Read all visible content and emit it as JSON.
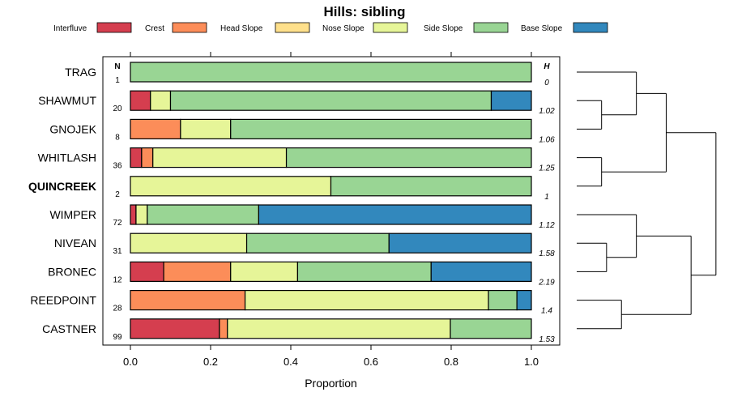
{
  "chart_data": {
    "type": "bar",
    "subtype": "stacked-horizontal-proportion",
    "title": "Hills: sibling",
    "xlabel": "Proportion",
    "xlim": [
      0,
      1
    ],
    "xticks": [
      "0.0",
      "0.2",
      "0.4",
      "0.6",
      "0.8",
      "1.0"
    ],
    "xtick_values": [
      0,
      0.2,
      0.4,
      0.6,
      0.8,
      1.0
    ],
    "n_header": "N",
    "h_header": "H",
    "series": [
      {
        "name": "Interfluve",
        "color": "#D53E4F"
      },
      {
        "name": "Crest",
        "color": "#FC8D59"
      },
      {
        "name": "Head Slope",
        "color": "#FEE08B"
      },
      {
        "name": "Nose Slope",
        "color": "#E6F598"
      },
      {
        "name": "Side Slope",
        "color": "#99D594"
      },
      {
        "name": "Base Slope",
        "color": "#3288BD"
      }
    ],
    "categories": [
      {
        "name": "TRAG",
        "n": "1",
        "h": "0",
        "bold": false,
        "values": [
          0,
          0,
          0,
          0,
          1.0,
          0
        ]
      },
      {
        "name": "SHAWMUT",
        "n": "20",
        "h": "1.02",
        "bold": false,
        "values": [
          0.05,
          0,
          0,
          0.05,
          0.8,
          0.1
        ]
      },
      {
        "name": "GNOJEK",
        "n": "8",
        "h": "1.06",
        "bold": false,
        "values": [
          0,
          0.125,
          0,
          0.125,
          0.75,
          0
        ]
      },
      {
        "name": "WHITLASH",
        "n": "36",
        "h": "1.25",
        "bold": false,
        "values": [
          0.028,
          0.028,
          0,
          0.333,
          0.611,
          0
        ]
      },
      {
        "name": "QUINCREEK",
        "n": "2",
        "h": "1",
        "bold": true,
        "values": [
          0,
          0,
          0,
          0.5,
          0.5,
          0
        ]
      },
      {
        "name": "WIMPER",
        "n": "72",
        "h": "1.12",
        "bold": false,
        "values": [
          0.014,
          0,
          0,
          0.028,
          0.278,
          0.68
        ]
      },
      {
        "name": "NIVEAN",
        "n": "31",
        "h": "1.58",
        "bold": false,
        "values": [
          0,
          0,
          0,
          0.29,
          0.355,
          0.355
        ]
      },
      {
        "name": "BRONEC",
        "n": "12",
        "h": "2.19",
        "bold": false,
        "values": [
          0.083,
          0.167,
          0,
          0.167,
          0.333,
          0.25
        ]
      },
      {
        "name": "REEDPOINT",
        "n": "28",
        "h": "1.4",
        "bold": false,
        "values": [
          0,
          0.286,
          0,
          0.607,
          0.071,
          0.036
        ]
      },
      {
        "name": "CASTNER",
        "n": "99",
        "h": "1.53",
        "bold": false,
        "values": [
          0.222,
          0.02,
          0,
          0.556,
          0.202,
          0
        ]
      }
    ],
    "dendrogram": [
      {
        "id": "m1",
        "left": "SHAWMUT",
        "right": "GNOJEK",
        "height": 0.25
      },
      {
        "id": "m2",
        "left": "TRAG",
        "right": "m1",
        "height": 0.6
      },
      {
        "id": "m3",
        "left": "WHITLASH",
        "right": "QUINCREEK",
        "height": 0.25
      },
      {
        "id": "m4",
        "left": "m2",
        "right": "m3",
        "height": 0.9
      },
      {
        "id": "m5",
        "left": "NIVEAN",
        "right": "BRONEC",
        "height": 0.3
      },
      {
        "id": "m6",
        "left": "WIMPER",
        "right": "m5",
        "height": 0.6
      },
      {
        "id": "m7",
        "left": "REEDPOINT",
        "right": "CASTNER",
        "height": 0.45
      },
      {
        "id": "m8",
        "left": "m6",
        "right": "m7",
        "height": 1.15
      },
      {
        "id": "m9",
        "left": "m4",
        "right": "m8",
        "height": 1.4
      }
    ],
    "dendrogram_max_height": 1.45,
    "grid": false,
    "legend_position": "top"
  }
}
